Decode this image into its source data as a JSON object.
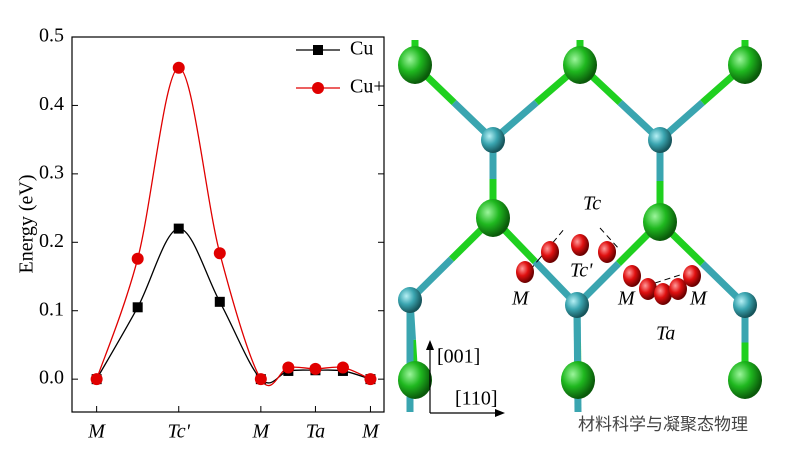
{
  "chart_data": {
    "type": "line",
    "ylabel": "Energy (eV)",
    "x": [
      0,
      1,
      2,
      3,
      4,
      4.67,
      5.33,
      6,
      6.67
    ],
    "xlim": [
      -0.6,
      7
    ],
    "xticks": [
      {
        "value": 0,
        "label": "M"
      },
      {
        "value": 2,
        "label": "Tc'"
      },
      {
        "value": 4,
        "label": "M"
      },
      {
        "value": 5.33,
        "label": "Ta"
      },
      {
        "value": 6.67,
        "label": "M"
      }
    ],
    "ylim": [
      -0.048,
      0.5
    ],
    "yticks": [
      {
        "value": 0,
        "label": "0.0"
      },
      0.1,
      0.2,
      0.3,
      0.4,
      0.5
    ],
    "legend": "upper right",
    "series": [
      {
        "name": "Cu",
        "color": "#000000",
        "marker": "square",
        "values": [
          0,
          0.105,
          0.22,
          0.113,
          0,
          0.012,
          0.013,
          0.012,
          0
        ]
      },
      {
        "name": "Cu+",
        "color": "#e00000",
        "marker": "circle",
        "values": [
          0,
          0.176,
          0.455,
          0.184,
          0,
          0.017,
          0.015,
          0.017,
          0
        ]
      }
    ]
  },
  "structure": {
    "labels": [
      "Tc",
      "Tc'",
      "M",
      "M",
      "M",
      "Ta"
    ],
    "axes": [
      "[001]",
      "[110]"
    ],
    "watermark": "材料科学与凝聚态物理"
  }
}
